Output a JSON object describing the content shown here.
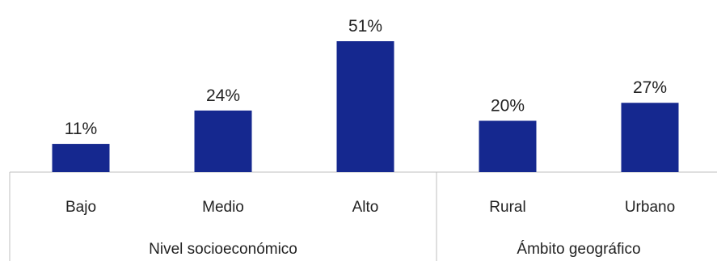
{
  "chart_data": {
    "type": "bar",
    "groups": [
      {
        "name": "Nivel socioeconómico",
        "categories": [
          "Bajo",
          "Medio",
          "Alto"
        ],
        "values": [
          11,
          24,
          51
        ]
      },
      {
        "name": "Ámbito geográfico",
        "categories": [
          "Rural",
          "Urbano"
        ],
        "values": [
          20,
          27
        ]
      }
    ],
    "categories": [
      "Bajo",
      "Medio",
      "Alto",
      "Rural",
      "Urbano"
    ],
    "values": [
      11,
      24,
      51,
      20,
      27
    ],
    "data_labels": [
      "11%",
      "24%",
      "51%",
      "20%",
      "27%"
    ],
    "unit": "%",
    "ylim": [
      0,
      51
    ],
    "grid": false,
    "legend": "none",
    "bar_color": "#15288f",
    "axis_color": "#bfbfbf"
  }
}
